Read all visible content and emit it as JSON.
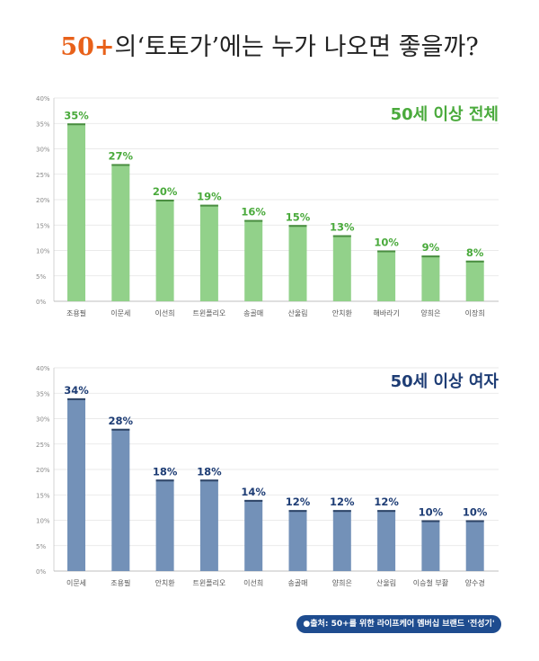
{
  "header": {
    "title_accent": "50+",
    "title_rest": "의‘토토가’에는 누가 나오면 좋을까?"
  },
  "colors": {
    "accent": "#e8611a",
    "source_bg": "#1e4c8f"
  },
  "chart_data": [
    {
      "type": "bar",
      "title": "50세 이상 전체",
      "categories": [
        "조용필",
        "이문세",
        "이선희",
        "트윈폴리오",
        "송골매",
        "산울림",
        "안치환",
        "해바라기",
        "양희은",
        "이장희"
      ],
      "values": [
        35,
        27,
        20,
        19,
        16,
        15,
        13,
        10,
        9,
        8
      ],
      "value_labels": [
        "35%",
        "27%",
        "20%",
        "19%",
        "16%",
        "15%",
        "13%",
        "10%",
        "9%",
        "8%"
      ],
      "y_ticks": [
        "0%",
        "5%",
        "10%",
        "15%",
        "20%",
        "25%",
        "30%",
        "35%",
        "40%"
      ],
      "ylim": [
        0,
        40
      ],
      "bar_color": "#92d18a",
      "bar_top_color": "#4a8e41",
      "label_color": "#4aaa3c"
    },
    {
      "type": "bar",
      "title": "50세 이상 여자",
      "categories": [
        "이문세",
        "조용필",
        "안치환",
        "트윈폴리오",
        "이선희",
        "송골매",
        "양희은",
        "산울림",
        "이승철 부활",
        "양수경"
      ],
      "values": [
        34,
        28,
        18,
        18,
        14,
        12,
        12,
        12,
        10,
        10
      ],
      "value_labels": [
        "34%",
        "28%",
        "18%",
        "18%",
        "14%",
        "12%",
        "12%",
        "12%",
        "10%",
        "10%"
      ],
      "y_ticks": [
        "0%",
        "5%",
        "10%",
        "15%",
        "20%",
        "25%",
        "30%",
        "35%",
        "40%"
      ],
      "ylim": [
        0,
        40
      ],
      "bar_color": "#7391b8",
      "bar_top_color": "#2e4466",
      "label_color": "#1e3d75"
    }
  ],
  "source": {
    "text": "●출처: 50+를 위한 라이프케어 멤버십 브랜드 '전성기'"
  }
}
